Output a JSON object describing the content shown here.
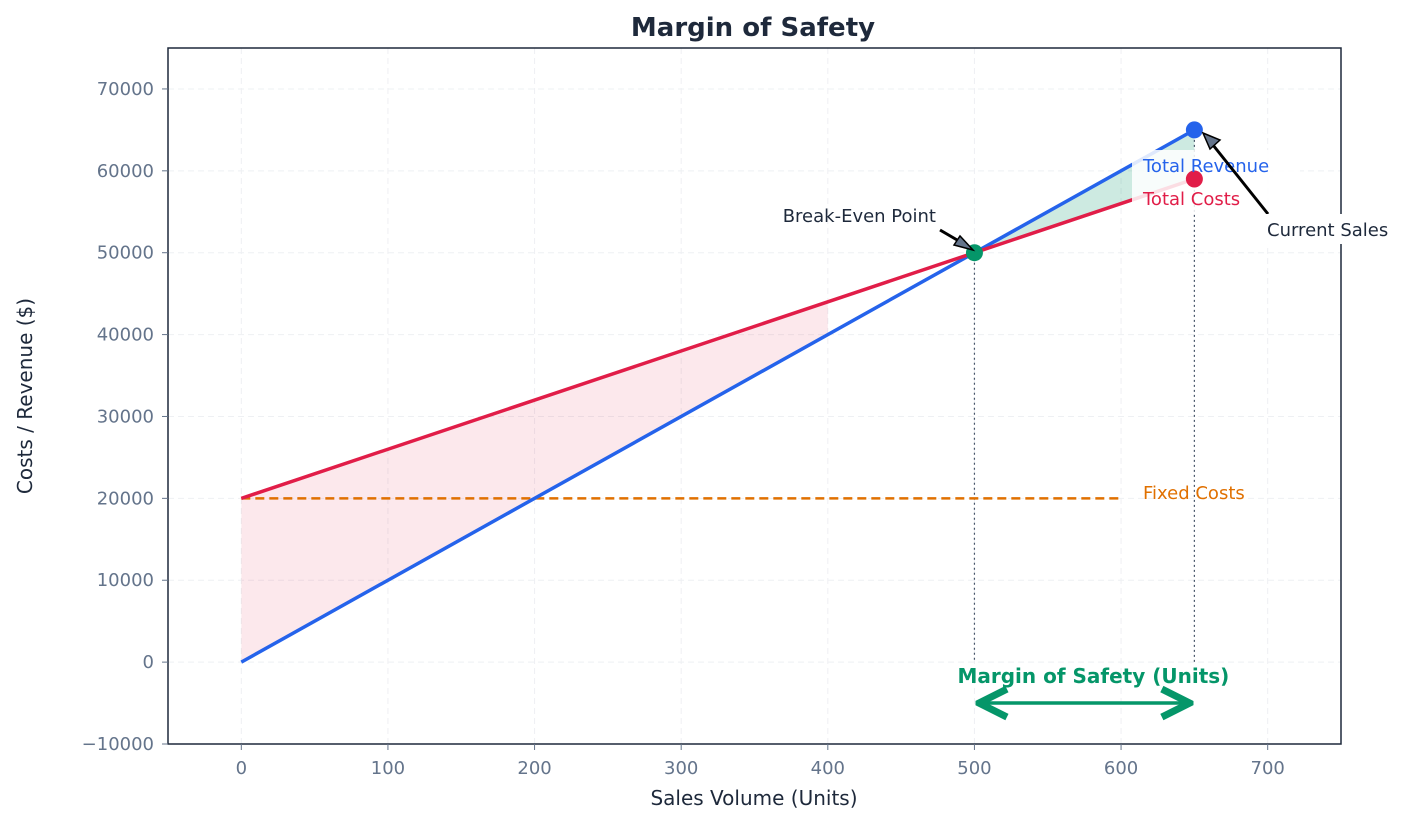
{
  "chart_data": {
    "type": "line",
    "title": "Margin of Safety",
    "xlabel": "Sales Volume (Units)",
    "ylabel": "Costs / Revenue ($)",
    "xlim": [
      -50,
      750
    ],
    "ylim": [
      -10000,
      75000
    ],
    "xticks": [
      0,
      100,
      200,
      300,
      400,
      500,
      600,
      700
    ],
    "yticks": [
      -10000,
      0,
      10000,
      20000,
      30000,
      40000,
      50000,
      60000,
      70000
    ],
    "ytick_labels": [
      "−10000",
      "0",
      "10000",
      "20000",
      "30000",
      "40000",
      "50000",
      "60000",
      "70000"
    ],
    "grid": true,
    "series": [
      {
        "name": "Total Revenue",
        "color": "#2563eb",
        "x": [
          0,
          650
        ],
        "y": [
          0,
          65000
        ]
      },
      {
        "name": "Total Costs",
        "color": "#e11d48",
        "x": [
          0,
          650
        ],
        "y": [
          20000,
          59000
        ]
      },
      {
        "name": "Fixed Costs",
        "color": "#e07000",
        "style": "dashed",
        "x": [
          0,
          600
        ],
        "y": [
          20000,
          20000
        ]
      }
    ],
    "fills": [
      {
        "region": "loss",
        "color": "#e11d48",
        "x": [
          0,
          400
        ]
      },
      {
        "region": "profit",
        "color": "#059669",
        "x": [
          500,
          650
        ]
      }
    ],
    "points": [
      {
        "label": "Break-Even Point",
        "x": 500,
        "y": 50000,
        "color": "#059669"
      },
      {
        "label": "Current Sales",
        "x": 650,
        "y": 65000,
        "color": "#2563eb"
      },
      {
        "x": 650,
        "y": 59000,
        "color": "#e11d48"
      }
    ],
    "annotations": {
      "break_even": "Break-Even Point",
      "current_sales": "Current Sales",
      "margin": "Margin of Safety (Units)",
      "margin_range": [
        500,
        650
      ],
      "margin_color": "#059669"
    }
  }
}
